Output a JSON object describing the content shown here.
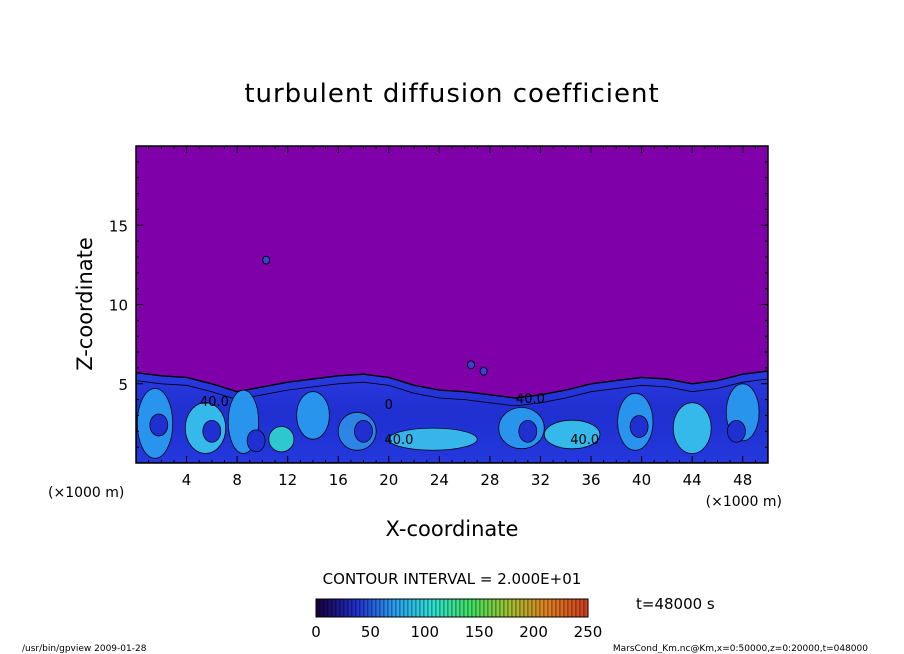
{
  "chart_data": {
    "type": "heatmap",
    "title": "turbulent diffusion coefficient",
    "xlabel": "X-coordinate",
    "ylabel": "Z-coordinate",
    "x_unit_left": "(×1000 m)",
    "x_unit_right": "(×1000 m)",
    "xlim": [
      0,
      50
    ],
    "ylim": [
      0,
      20
    ],
    "x_ticks": [
      4,
      8,
      12,
      16,
      20,
      24,
      28,
      32,
      36,
      40,
      44,
      48
    ],
    "y_ticks": [
      5,
      10,
      15
    ],
    "background_value": 0,
    "background_color": "#7f00a8",
    "turbulent_layer_top_profile": {
      "x": [
        0,
        2,
        4,
        6,
        8,
        10,
        12,
        14,
        16,
        18,
        20,
        22,
        24,
        26,
        28,
        30,
        32,
        34,
        36,
        38,
        40,
        42,
        44,
        46,
        48,
        50
      ],
      "z": [
        5.7,
        5.5,
        5.4,
        5.0,
        4.5,
        4.8,
        5.1,
        5.3,
        5.5,
        5.6,
        5.4,
        4.9,
        4.6,
        4.5,
        4.3,
        4.1,
        4.3,
        4.6,
        5.0,
        5.2,
        5.4,
        5.3,
        5.0,
        5.2,
        5.6,
        5.8
      ]
    },
    "contour_labels": [
      {
        "text": "40.0",
        "x": 6.2,
        "z": 3.6
      },
      {
        "text": "40.0",
        "x": 20.8,
        "z": 1.2
      },
      {
        "text": "40.0",
        "x": 31.2,
        "z": 3.8
      },
      {
        "text": "40.0",
        "x": 35.5,
        "z": 1.2
      },
      {
        "text": "0",
        "x": 20.0,
        "z": 3.4
      }
    ],
    "contour_interval": "CONTOUR INTERVAL = 2.000E+01",
    "colorbar": {
      "min": 0,
      "max": 250,
      "ticks": [
        0,
        50,
        100,
        150,
        200,
        250
      ],
      "colors": [
        "#1a0040",
        "#1f2fd0",
        "#2aa0f0",
        "#30e0d0",
        "#40e060",
        "#a0c030",
        "#e08020",
        "#d04020"
      ]
    },
    "time_label": "t=48000 s",
    "footer_left": "/usr/bin/gpview   2009-01-28",
    "footer_right": "MarsCond_Km.nc@Km,x=0:50000,z=0:20000,t=048000"
  }
}
